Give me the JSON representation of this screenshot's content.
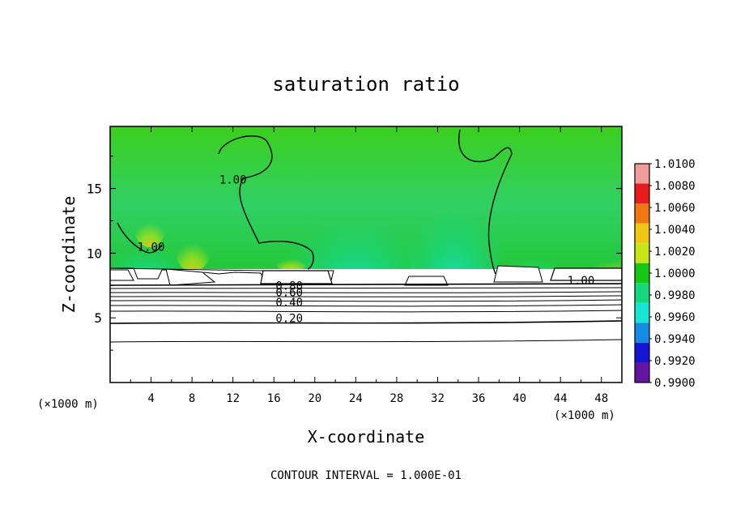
{
  "chart_data": {
    "type": "heatmap",
    "title": "saturation ratio",
    "xlabel": "X-coordinate",
    "ylabel": "Z-coordinate",
    "x_unit_left": "(×1000 m)",
    "x_unit_right": "(×1000 m)",
    "footer": "CONTOUR INTERVAL = 1.000E-01",
    "xlim": [
      0,
      50
    ],
    "ylim": [
      0,
      19.8
    ],
    "x_ticks": [
      4,
      8,
      12,
      16,
      20,
      24,
      28,
      32,
      36,
      40,
      44,
      48
    ],
    "x_tick_labels": [
      "4",
      "8",
      "12",
      "16",
      "20",
      "24",
      "28",
      "32",
      "36",
      "40",
      "44",
      "48"
    ],
    "y_ticks": [
      5,
      10,
      15
    ],
    "y_tick_labels": [
      "5",
      "10",
      "15"
    ],
    "colorbar": {
      "labels": [
        "1.0100",
        "1.0080",
        "1.0060",
        "1.0040",
        "1.0020",
        "1.0000",
        "0.9980",
        "0.9960",
        "0.9940",
        "0.9920",
        "0.9900"
      ],
      "values": [
        1.01,
        1.008,
        1.006,
        1.004,
        1.002,
        1.0,
        0.998,
        0.996,
        0.994,
        0.992,
        0.99
      ],
      "colors": [
        "#f09a9a",
        "#e81c1c",
        "#f07814",
        "#f0c814",
        "#c8e614",
        "#14c814",
        "#14d87c",
        "#14e6d2",
        "#148ce6",
        "#1414d2",
        "#6414a0"
      ]
    },
    "contour_labels": [
      {
        "text": "1.00",
        "x": 4,
        "z": 10.3
      },
      {
        "text": "1.00",
        "x": 12,
        "z": 15.5
      },
      {
        "text": "1.00",
        "x": 46,
        "z": 7.7
      },
      {
        "text": "0.20",
        "x": 17.5,
        "z": 4.8
      },
      {
        "text": "0.40",
        "x": 17.5,
        "z": 6.0
      },
      {
        "text": "0.60",
        "x": 17.5,
        "z": 6.8
      },
      {
        "text": "0.80",
        "x": 17.5,
        "z": 7.3
      }
    ],
    "cloud_base_z": 8.0,
    "cloud_top_z": 9.3,
    "contour_levels_below_cloud": [
      0.2,
      0.3,
      0.4,
      0.5,
      0.6,
      0.7,
      0.8,
      0.9,
      1.0
    ]
  }
}
